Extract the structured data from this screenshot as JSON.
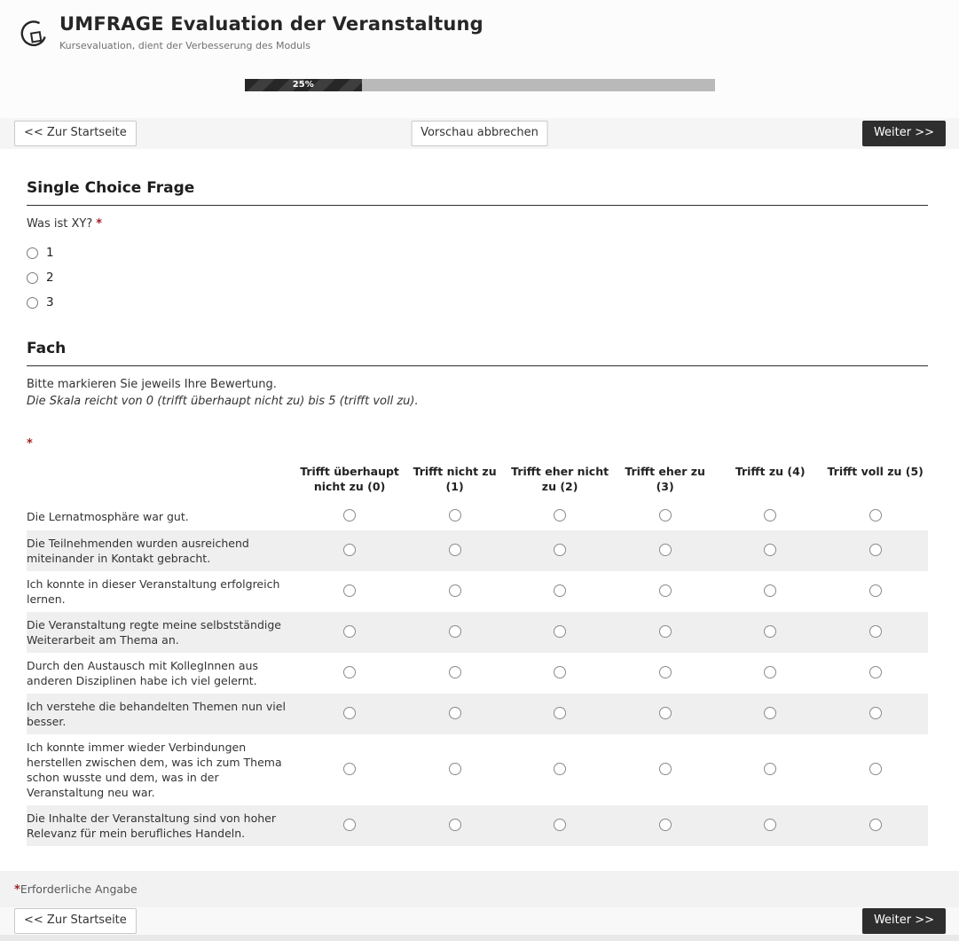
{
  "header": {
    "title": "UMFRAGE Evaluation der Veranstaltung",
    "subtitle": "Kursevaluation, dient der Verbesserung des Moduls"
  },
  "progress": {
    "percent": 25,
    "label": "25%"
  },
  "nav": {
    "back_label": "<< Zur Startseite",
    "cancel_label": "Vorschau abbrechen",
    "next_label": "Weiter >>"
  },
  "question1": {
    "section_title": "Single Choice Frage",
    "question": "Was ist XY?",
    "required_marker": "*",
    "options": [
      "1",
      "2",
      "3"
    ]
  },
  "question2": {
    "section_title": "Fach",
    "intro": "Bitte markieren Sie jeweils Ihre Bewertung.",
    "intro_italic": "Die Skala reicht von 0 (trifft überhaupt nicht zu) bis 5 (trifft voll zu).",
    "required_marker": "*",
    "columns": [
      "Trifft überhaupt nicht zu (0)",
      "Trifft nicht zu (1)",
      "Trifft eher nicht zu (2)",
      "Trifft eher zu (3)",
      "Trifft zu (4)",
      "Trifft voll zu (5)"
    ],
    "rows": [
      "Die Lernatmosphäre war gut.",
      "Die Teilnehmenden wurden ausreichend miteinander in Kontakt gebracht.",
      "Ich konnte in dieser Veranstaltung erfolgreich lernen.",
      "Die Veranstaltung regte meine selbstständige Weiterarbeit am Thema an.",
      "Durch den Austausch mit KollegInnen aus anderen Disziplinen habe ich viel gelernt.",
      "Ich verstehe die behandelten Themen nun viel besser.",
      "Ich konnte immer wieder Verbindungen herstellen zwischen dem, was ich zum Thema schon wusste und dem, was in der Veranstaltung neu war.",
      "Die Inhalte der Veranstaltung sind von hoher Relevanz für mein berufliches Handeln."
    ]
  },
  "footer": {
    "required_note_marker": "*",
    "required_note": "Erforderliche Angabe"
  },
  "colors": {
    "page_bg": "#f5f5f5",
    "panel_bg": "#ffffff",
    "accent_dark": "#2e2e2e",
    "required_red": "#9e2226",
    "row_stripe": "#efefef",
    "progress_track": "#b9b9b9",
    "progress_fill_dark": "#272727"
  }
}
